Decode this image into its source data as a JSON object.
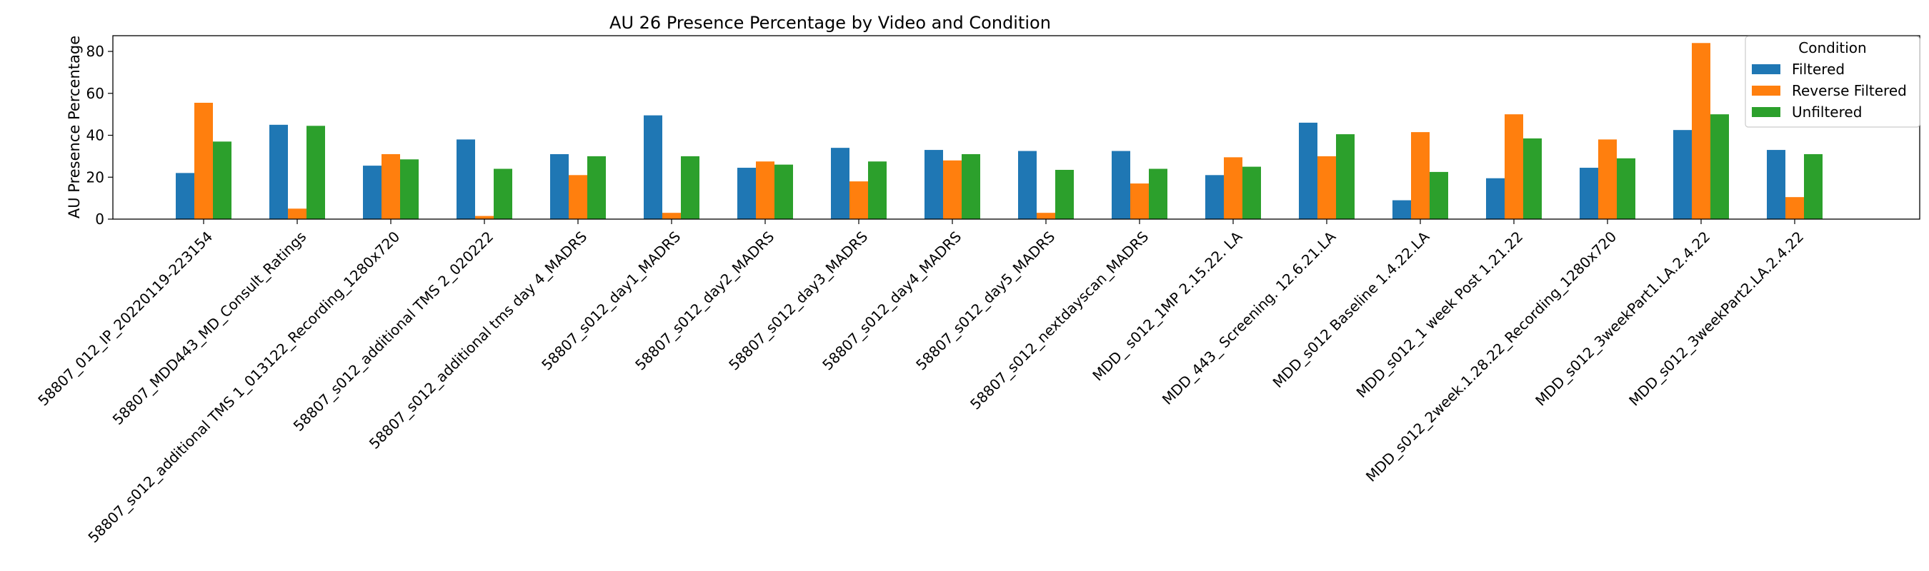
{
  "chart_data": {
    "type": "bar",
    "title": "AU 26 Presence Percentage by Video and Condition",
    "xlabel": "",
    "ylabel": "AU Presence Percentage",
    "ylim": [
      0,
      87.5
    ],
    "yticks": [
      0,
      20,
      40,
      60,
      80
    ],
    "grid": false,
    "legend": {
      "title": "Condition",
      "placement": "top-right"
    },
    "categories": [
      "58807_012_IP_20220119-223154",
      "58807_MDD443_MD_Consult_Ratings",
      "58807_s012_additional TMS 1_013122_Recording_1280x720",
      "58807_s012_additional TMS 2_020222",
      "58807_s012_additional tms day 4_MADRS",
      "58807_s012_day1_MADRS",
      "58807_s012_day2_MADRS",
      "58807_s012_day3_MADRS",
      "58807_s012_day4_MADRS",
      "58807_s012_day5_MADRS",
      "58807_s012_nextdayscan_MADRS",
      "MDD_ s012_1MP  2.15.22. LA",
      "MDD_443_ Screening. 12.6.21.LA",
      "MDD_s012 Baseline 1.4.22.LA",
      "MDD_s012_1 week Post 1.21.22",
      "MDD_s012_2week.1.28.22_Recording_1280x720",
      "MDD_s012_3weekPart1.LA.2.4.22",
      "MDD_s012_3weekPart2.LA.2.4.22"
    ],
    "series": [
      {
        "name": "Filtered",
        "color": "#1f77b4",
        "values": [
          22.0,
          45.0,
          25.5,
          38.0,
          31.0,
          49.5,
          24.5,
          34.0,
          33.0,
          32.5,
          32.5,
          21.0,
          46.0,
          9.0,
          19.5,
          24.5,
          42.5,
          33.0
        ]
      },
      {
        "name": "Reverse Filtered",
        "color": "#ff7f0e",
        "values": [
          55.5,
          5.0,
          31.0,
          1.5,
          21.0,
          3.0,
          27.5,
          18.0,
          28.0,
          3.0,
          17.0,
          29.5,
          30.0,
          41.5,
          50.0,
          38.0,
          84.0,
          10.5
        ]
      },
      {
        "name": "Unfiltered",
        "color": "#2ca02c",
        "values": [
          37.0,
          44.5,
          28.5,
          24.0,
          30.0,
          30.0,
          26.0,
          27.5,
          31.0,
          23.5,
          24.0,
          25.0,
          40.5,
          22.5,
          38.5,
          29.0,
          50.0,
          31.0
        ]
      }
    ]
  }
}
